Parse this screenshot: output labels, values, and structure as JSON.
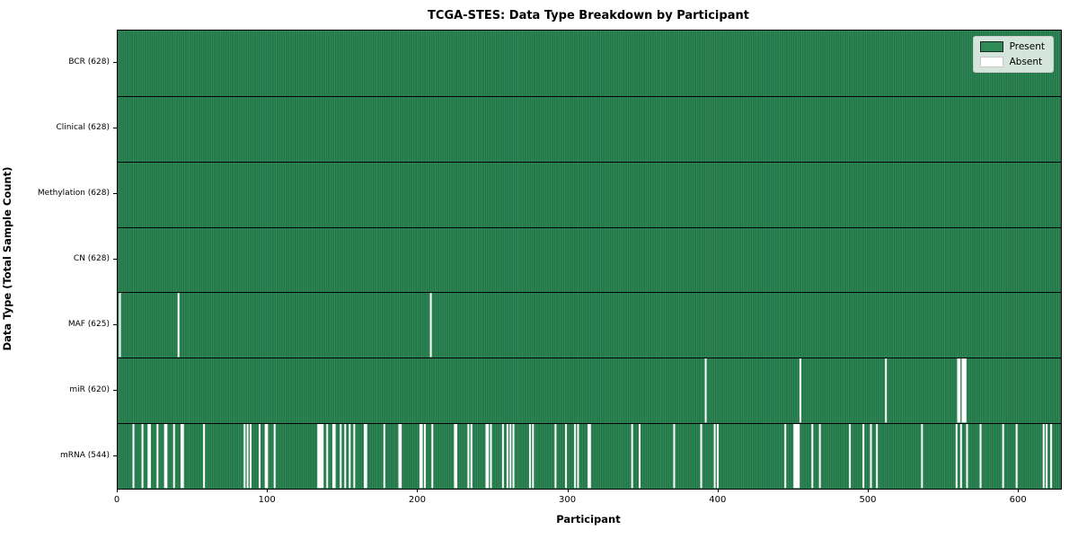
{
  "chart_data": {
    "type": "heatmap",
    "title": "TCGA-STES: Data Type Breakdown by Participant",
    "xlabel": "Participant",
    "ylabel": "Data Type (Total Sample Count)",
    "x_ticks": [
      0,
      100,
      200,
      300,
      400,
      500,
      600
    ],
    "n_participants": 628,
    "xlim": [
      0,
      628
    ],
    "grid": false,
    "legend_position": "upper right",
    "legend": [
      {
        "label": "Present",
        "color": "#2e8b57"
      },
      {
        "label": "Absent",
        "color": "#ffffff"
      }
    ],
    "colors": {
      "present": "#2e8b57",
      "absent": "#ffffff",
      "bar_edge": "#0d3321",
      "row_separator": "#000000"
    },
    "rows": [
      {
        "label": "BCR (628)",
        "data_type": "BCR",
        "total": 628,
        "absent": []
      },
      {
        "label": "Clinical (628)",
        "data_type": "Clinical",
        "total": 628,
        "absent": []
      },
      {
        "label": "Methylation (628)",
        "data_type": "Methylation",
        "total": 628,
        "absent": []
      },
      {
        "label": "CN (628)",
        "data_type": "CN",
        "total": 628,
        "absent": []
      },
      {
        "label": "MAF (625)",
        "data_type": "MAF",
        "total": 625,
        "absent": [
          1,
          40,
          208
        ]
      },
      {
        "label": "miR (620)",
        "data_type": "miR",
        "total": 620,
        "absent": [
          391,
          454,
          511,
          559,
          560,
          562,
          563,
          564
        ]
      },
      {
        "label": "mRNA (544)",
        "data_type": "mRNA",
        "total": 544,
        "absent": [
          10,
          16,
          20,
          21,
          26,
          31,
          32,
          37,
          42,
          43,
          57,
          84,
          86,
          88,
          94,
          98,
          99,
          104,
          133,
          134,
          135,
          136,
          139,
          143,
          144,
          148,
          151,
          154,
          157,
          164,
          165,
          177,
          187,
          188,
          201,
          202,
          204,
          209,
          224,
          225,
          233,
          235,
          245,
          246,
          248,
          256,
          259,
          261,
          263,
          274,
          276,
          291,
          298,
          304,
          306,
          313,
          314,
          342,
          347,
          370,
          388,
          397,
          399,
          444,
          450,
          451,
          452,
          453,
          462,
          467,
          487,
          496,
          501,
          505,
          535,
          558,
          561,
          565,
          574,
          589,
          598,
          616,
          618,
          621
        ]
      }
    ]
  }
}
